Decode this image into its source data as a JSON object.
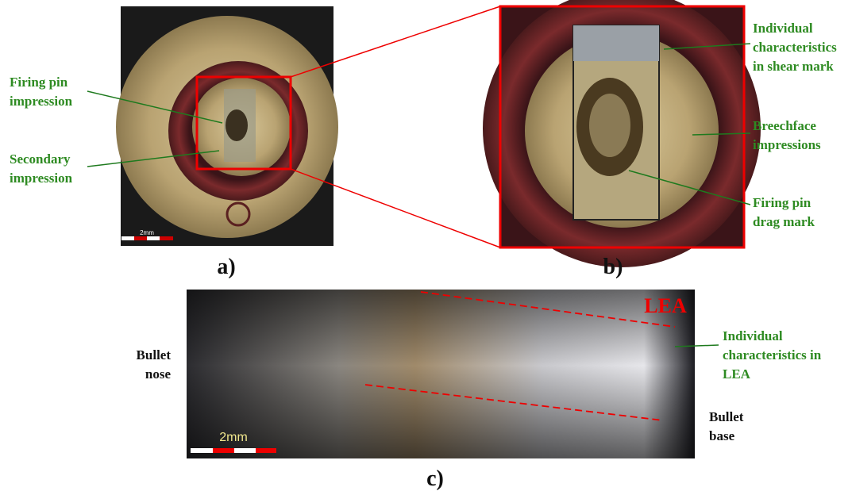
{
  "panels": [
    {
      "label": "a)",
      "scale_bar": "2mm",
      "annotations": [
        {
          "lines": [
            "Firing pin",
            "impression"
          ]
        },
        {
          "lines": [
            "Secondary",
            "impression"
          ]
        }
      ]
    },
    {
      "label": "b)",
      "annotations": [
        {
          "lines": [
            "Individual",
            "characteristics",
            "in shear mark"
          ]
        },
        {
          "lines": [
            "Breechface",
            "impressions"
          ]
        },
        {
          "lines": [
            "Firing pin",
            "drag mark"
          ]
        }
      ]
    },
    {
      "label": "c)",
      "scale_bar": "2mm",
      "feature_label": "LEA",
      "annotations": [
        {
          "lines": [
            "Individual",
            "characteristics in",
            "LEA"
          ]
        }
      ],
      "side_labels": [
        {
          "lines": [
            "Bullet",
            "nose"
          ]
        },
        {
          "lines": [
            "Bullet",
            "base"
          ]
        }
      ]
    }
  ]
}
